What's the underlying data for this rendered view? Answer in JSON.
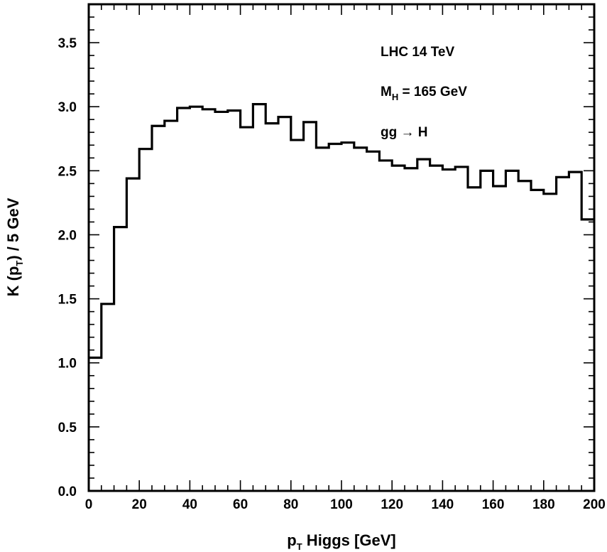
{
  "chart_data": {
    "type": "line",
    "style": "step-histogram",
    "xlabel": {
      "main": "p",
      "sub": "T",
      "rest": " Higgs [GeV]"
    },
    "ylabel": {
      "pre": "K (p",
      "sub": "T",
      "post": ")  / 5 GeV"
    },
    "xlim": [
      0,
      200
    ],
    "ylim": [
      0,
      3.8
    ],
    "xticks": [
      0,
      20,
      40,
      60,
      80,
      100,
      120,
      140,
      160,
      180,
      200
    ],
    "xtick_labels": [
      "0",
      "20",
      "40",
      "60",
      "80",
      "100",
      "120",
      "140",
      "160",
      "180",
      "200"
    ],
    "yticks": [
      0,
      0.5,
      1.0,
      1.5,
      2.0,
      2.5,
      3.0,
      3.5
    ],
    "ytick_labels": [
      "0.0",
      "0.5",
      "1.0",
      "1.5",
      "2.0",
      "2.5",
      "3.0",
      "3.5"
    ],
    "grid": false,
    "bin_width": 5,
    "bin_edges": [
      0,
      5,
      10,
      15,
      20,
      25,
      30,
      35,
      40,
      45,
      50,
      55,
      60,
      65,
      70,
      75,
      80,
      85,
      90,
      95,
      100,
      105,
      110,
      115,
      120,
      125,
      130,
      135,
      140,
      145,
      150,
      155,
      160,
      165,
      170,
      175,
      180,
      185,
      190,
      195,
      200
    ],
    "values": [
      1.04,
      1.46,
      2.06,
      2.44,
      2.67,
      2.85,
      2.89,
      2.99,
      3.0,
      2.98,
      2.96,
      2.97,
      2.84,
      3.02,
      2.87,
      2.92,
      2.74,
      2.88,
      2.68,
      2.71,
      2.72,
      2.68,
      2.65,
      2.58,
      2.54,
      2.52,
      2.59,
      2.54,
      2.51,
      2.53,
      2.37,
      2.5,
      2.38,
      2.5,
      2.42,
      2.35,
      2.32,
      2.45,
      2.49,
      2.12
    ],
    "annotations": {
      "collider": "LHC 14 TeV",
      "mass": {
        "pre": "M",
        "sub": "H",
        "post": " = 165 GeV"
      },
      "process": "gg → H"
    },
    "line_color": "#000000"
  }
}
